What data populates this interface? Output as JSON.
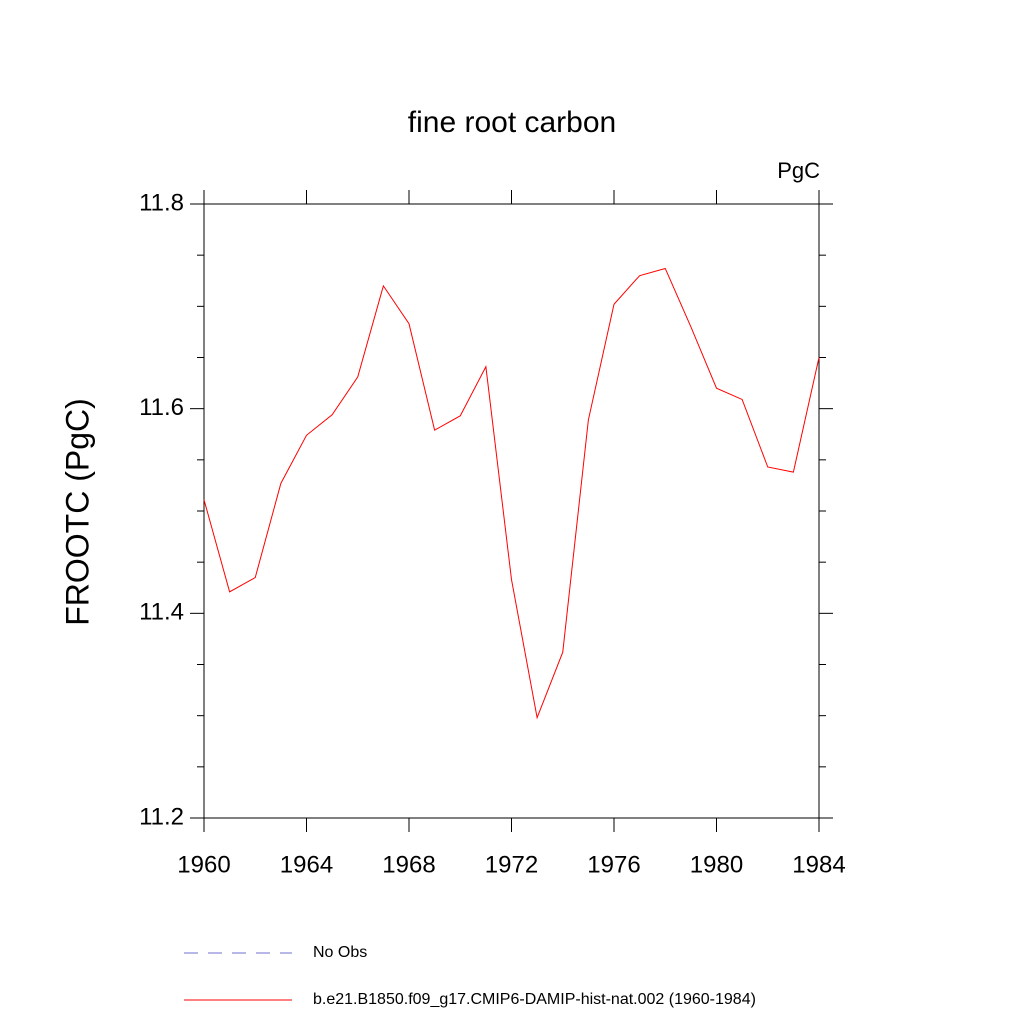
{
  "chart_data": {
    "type": "line",
    "title": "fine root carbon",
    "units": "PgC",
    "y_label": "FROOTC  (PgC)",
    "x": [
      1960,
      1961,
      1962,
      1963,
      1964,
      1965,
      1966,
      1967,
      1968,
      1969,
      1970,
      1971,
      1972,
      1973,
      1974,
      1975,
      1976,
      1977,
      1978,
      1979,
      1980,
      1981,
      1982,
      1983,
      1984
    ],
    "series": [
      {
        "name": "No Obs",
        "color": "#7070d0",
        "dashed": true,
        "values": [
          null,
          null,
          null,
          null,
          null,
          null,
          null,
          null,
          null,
          null,
          null,
          null,
          null,
          null,
          null,
          null,
          null,
          null,
          null,
          null,
          null,
          null,
          null,
          null,
          null
        ]
      },
      {
        "name": "b.e21.B1850.f09_g17.CMIP6-DAMIP-hist-nat.002 (1960-1984)",
        "color": "#ff0000",
        "dashed": false,
        "values": [
          11.511,
          11.421,
          11.435,
          11.527,
          11.574,
          11.594,
          11.631,
          11.72,
          11.683,
          11.579,
          11.593,
          11.641,
          11.433,
          11.298,
          11.362,
          11.589,
          11.702,
          11.73,
          11.737,
          11.68,
          11.62,
          11.609,
          11.543,
          11.538,
          11.65
        ]
      }
    ],
    "xlim": [
      1960,
      1984
    ],
    "xticks": [
      1960,
      1964,
      1968,
      1972,
      1976,
      1980,
      1984
    ],
    "ylim": [
      11.2,
      11.8
    ],
    "yticks": [
      11.2,
      11.4,
      11.6,
      11.8
    ],
    "yminorticks": [
      11.25,
      11.3,
      11.35,
      11.45,
      11.5,
      11.55,
      11.65,
      11.7,
      11.75
    ]
  }
}
